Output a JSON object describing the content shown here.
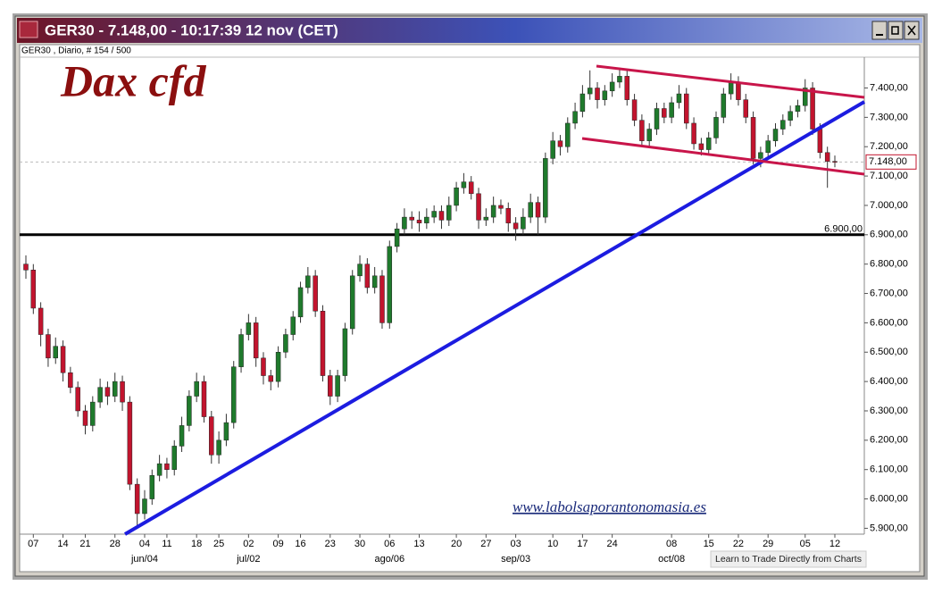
{
  "chart_data": {
    "type": "candlestick",
    "window_title": "GER30 - 7.148,00 - 10:17:39  12 nov (CET)",
    "subtitle": "GER30 , Diario, # 154 / 500",
    "title": "Dax cfd",
    "watermark": "www.labolsaporantonomasia.es",
    "footer_link": "Learn to Trade Directly from Charts",
    "up_color": "#1f7a2c",
    "down_color": "#c2142e",
    "grid": false,
    "ylim": [
      5880,
      7505
    ],
    "yticks": [
      {
        "value": 5900,
        "label": "5.900,00"
      },
      {
        "value": 6000,
        "label": "6.000,00"
      },
      {
        "value": 6100,
        "label": "6.100,00"
      },
      {
        "value": 6200,
        "label": "6.200,00"
      },
      {
        "value": 6300,
        "label": "6.300,00"
      },
      {
        "value": 6400,
        "label": "6.400,00"
      },
      {
        "value": 6500,
        "label": "6.500,00"
      },
      {
        "value": 6600,
        "label": "6.600,00"
      },
      {
        "value": 6700,
        "label": "6.700,00"
      },
      {
        "value": 6800,
        "label": "6.800,00"
      },
      {
        "value": 6900,
        "label": "6.900,00"
      },
      {
        "value": 7000,
        "label": "7.000,00"
      },
      {
        "value": 7100,
        "label": "7.100,00"
      },
      {
        "value": 7200,
        "label": "7.200,00"
      },
      {
        "value": 7300,
        "label": "7.300,00"
      },
      {
        "value": 7400,
        "label": "7.400,00"
      }
    ],
    "hline": {
      "value": 6900,
      "label": "6.900,00"
    },
    "last_price": {
      "value": 7148,
      "label": "7.148,00"
    },
    "categories": [
      null,
      "07",
      null,
      null,
      null,
      "14",
      null,
      null,
      "21",
      null,
      null,
      null,
      "28",
      null,
      null,
      null,
      "04",
      null,
      null,
      "11",
      null,
      null,
      null,
      "18",
      null,
      null,
      "25",
      null,
      null,
      null,
      "02",
      null,
      null,
      null,
      "09",
      null,
      null,
      "16",
      null,
      null,
      null,
      "23",
      null,
      null,
      null,
      "30",
      null,
      null,
      null,
      "06",
      null,
      null,
      null,
      "13",
      null,
      null,
      null,
      null,
      "20",
      null,
      null,
      null,
      "27",
      null,
      null,
      null,
      "03",
      null,
      null,
      null,
      null,
      "10",
      null,
      null,
      null,
      "17",
      null,
      null,
      null,
      "24",
      null,
      null,
      null,
      null,
      null,
      null,
      null,
      "08",
      null,
      null,
      null,
      null,
      "15",
      null,
      null,
      null,
      "22",
      null,
      null,
      null,
      "29",
      null,
      null,
      null,
      null,
      "05",
      null,
      null,
      null,
      "12"
    ],
    "months": [
      null,
      null,
      null,
      null,
      null,
      null,
      null,
      null,
      null,
      null,
      null,
      null,
      null,
      null,
      null,
      null,
      "jun/04",
      null,
      null,
      null,
      null,
      null,
      null,
      null,
      null,
      null,
      null,
      null,
      null,
      null,
      "jul/02",
      null,
      null,
      null,
      null,
      null,
      null,
      null,
      null,
      null,
      null,
      null,
      null,
      null,
      null,
      null,
      null,
      null,
      null,
      "ago/06",
      null,
      null,
      null,
      null,
      null,
      null,
      null,
      null,
      null,
      null,
      null,
      null,
      null,
      null,
      null,
      null,
      "sep/03",
      null,
      null,
      null,
      null,
      null,
      null,
      null,
      null,
      null,
      null,
      null,
      null,
      null,
      null,
      null,
      null,
      null,
      null,
      null,
      null,
      "oct/08",
      null,
      null,
      null,
      null,
      null,
      null,
      null,
      null,
      null,
      null,
      null,
      null,
      null,
      null,
      null,
      null,
      null,
      null,
      null,
      null,
      null,
      null
    ],
    "candles": [
      [
        6800,
        6830,
        6750,
        6780
      ],
      [
        6780,
        6800,
        6630,
        6650
      ],
      [
        6650,
        6670,
        6520,
        6560
      ],
      [
        6560,
        6580,
        6450,
        6480
      ],
      [
        6480,
        6550,
        6460,
        6520
      ],
      [
        6520,
        6540,
        6400,
        6430
      ],
      [
        6430,
        6450,
        6360,
        6380
      ],
      [
        6380,
        6400,
        6280,
        6300
      ],
      [
        6300,
        6320,
        6220,
        6250
      ],
      [
        6250,
        6350,
        6230,
        6330
      ],
      [
        6330,
        6410,
        6310,
        6380
      ],
      [
        6380,
        6400,
        6320,
        6350
      ],
      [
        6350,
        6430,
        6330,
        6400
      ],
      [
        6400,
        6420,
        6300,
        6330
      ],
      [
        6330,
        6350,
        6030,
        6050
      ],
      [
        6050,
        6070,
        5910,
        5950
      ],
      [
        5950,
        6030,
        5930,
        6000
      ],
      [
        6000,
        6100,
        5980,
        6080
      ],
      [
        6080,
        6150,
        6060,
        6120
      ],
      [
        6120,
        6140,
        6070,
        6100
      ],
      [
        6100,
        6200,
        6080,
        6180
      ],
      [
        6180,
        6280,
        6160,
        6250
      ],
      [
        6250,
        6370,
        6230,
        6350
      ],
      [
        6350,
        6430,
        6330,
        6400
      ],
      [
        6400,
        6420,
        6260,
        6280
      ],
      [
        6280,
        6300,
        6120,
        6150
      ],
      [
        6150,
        6230,
        6120,
        6200
      ],
      [
        6200,
        6290,
        6180,
        6260
      ],
      [
        6260,
        6470,
        6240,
        6450
      ],
      [
        6450,
        6580,
        6430,
        6560
      ],
      [
        6560,
        6630,
        6540,
        6600
      ],
      [
        6600,
        6620,
        6450,
        6480
      ],
      [
        6480,
        6500,
        6390,
        6420
      ],
      [
        6420,
        6440,
        6370,
        6400
      ],
      [
        6400,
        6520,
        6380,
        6500
      ],
      [
        6500,
        6580,
        6480,
        6560
      ],
      [
        6560,
        6640,
        6540,
        6620
      ],
      [
        6620,
        6740,
        6600,
        6720
      ],
      [
        6720,
        6790,
        6700,
        6760
      ],
      [
        6760,
        6780,
        6620,
        6640
      ],
      [
        6640,
        6660,
        6400,
        6420
      ],
      [
        6420,
        6440,
        6320,
        6350
      ],
      [
        6350,
        6440,
        6330,
        6420
      ],
      [
        6420,
        6600,
        6400,
        6580
      ],
      [
        6580,
        6780,
        6560,
        6760
      ],
      [
        6760,
        6830,
        6740,
        6800
      ],
      [
        6800,
        6820,
        6700,
        6720
      ],
      [
        6720,
        6790,
        6700,
        6760
      ],
      [
        6760,
        6780,
        6580,
        6600
      ],
      [
        6600,
        6880,
        6580,
        6860
      ],
      [
        6860,
        6940,
        6840,
        6920
      ],
      [
        6920,
        6990,
        6900,
        6960
      ],
      [
        6960,
        6980,
        6920,
        6950
      ],
      [
        6950,
        6980,
        6910,
        6940
      ],
      [
        6940,
        6990,
        6920,
        6960
      ],
      [
        6960,
        7000,
        6940,
        6980
      ],
      [
        6980,
        7000,
        6920,
        6950
      ],
      [
        6950,
        7030,
        6930,
        7000
      ],
      [
        7000,
        7080,
        6980,
        7060
      ],
      [
        7060,
        7110,
        7040,
        7080
      ],
      [
        7080,
        7100,
        7020,
        7040
      ],
      [
        7040,
        7060,
        6920,
        6950
      ],
      [
        6950,
        6990,
        6930,
        6960
      ],
      [
        6960,
        7030,
        6940,
        7000
      ],
      [
        7000,
        7020,
        6970,
        6990
      ],
      [
        6990,
        7010,
        6910,
        6940
      ],
      [
        6940,
        6960,
        6880,
        6920
      ],
      [
        6920,
        6990,
        6900,
        6960
      ],
      [
        6960,
        7040,
        6940,
        7010
      ],
      [
        7010,
        7030,
        6900,
        6960
      ],
      [
        6960,
        7180,
        6940,
        7160
      ],
      [
        7160,
        7250,
        7140,
        7220
      ],
      [
        7220,
        7240,
        7170,
        7200
      ],
      [
        7200,
        7300,
        7180,
        7280
      ],
      [
        7280,
        7350,
        7260,
        7320
      ],
      [
        7320,
        7410,
        7300,
        7380
      ],
      [
        7380,
        7460,
        7360,
        7400
      ],
      [
        7400,
        7420,
        7330,
        7360
      ],
      [
        7360,
        7410,
        7340,
        7390
      ],
      [
        7390,
        7450,
        7370,
        7420
      ],
      [
        7420,
        7470,
        7400,
        7440
      ],
      [
        7440,
        7460,
        7340,
        7360
      ],
      [
        7360,
        7380,
        7270,
        7290
      ],
      [
        7290,
        7310,
        7200,
        7220
      ],
      [
        7220,
        7280,
        7200,
        7260
      ],
      [
        7260,
        7350,
        7240,
        7330
      ],
      [
        7330,
        7350,
        7280,
        7300
      ],
      [
        7300,
        7370,
        7280,
        7350
      ],
      [
        7350,
        7410,
        7330,
        7380
      ],
      [
        7380,
        7400,
        7260,
        7280
      ],
      [
        7280,
        7300,
        7190,
        7210
      ],
      [
        7210,
        7230,
        7170,
        7190
      ],
      [
        7190,
        7250,
        7170,
        7230
      ],
      [
        7230,
        7320,
        7210,
        7300
      ],
      [
        7300,
        7400,
        7280,
        7380
      ],
      [
        7380,
        7450,
        7360,
        7420
      ],
      [
        7420,
        7440,
        7340,
        7360
      ],
      [
        7360,
        7380,
        7280,
        7300
      ],
      [
        7300,
        7320,
        7140,
        7160
      ],
      [
        7160,
        7200,
        7130,
        7180
      ],
      [
        7180,
        7240,
        7160,
        7220
      ],
      [
        7220,
        7280,
        7200,
        7260
      ],
      [
        7260,
        7310,
        7240,
        7290
      ],
      [
        7290,
        7340,
        7270,
        7320
      ],
      [
        7320,
        7360,
        7300,
        7340
      ],
      [
        7340,
        7430,
        7320,
        7400
      ],
      [
        7400,
        7420,
        7240,
        7260
      ],
      [
        7260,
        7280,
        7160,
        7180
      ],
      [
        7180,
        7200,
        7060,
        7150
      ],
      [
        7150,
        7170,
        7130,
        7148
      ]
    ]
  }
}
